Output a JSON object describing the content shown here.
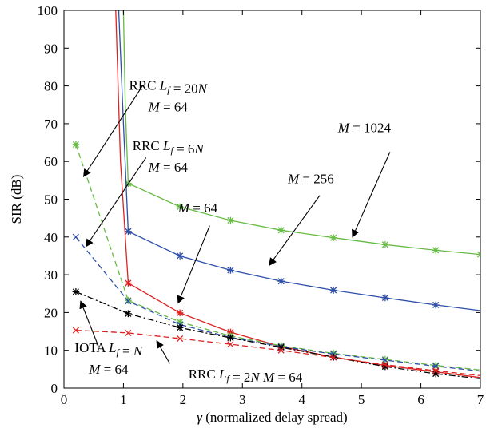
{
  "chart_data": {
    "type": "line",
    "xlabel": "γ (normalized delay spread)",
    "ylabel": "SIR (dB)",
    "xlim": [
      0,
      7
    ],
    "ylim": [
      0,
      100
    ],
    "xticks": [
      0,
      1,
      2,
      3,
      4,
      5,
      6,
      7
    ],
    "yticks": [
      0,
      10,
      20,
      30,
      40,
      50,
      60,
      70,
      80,
      90,
      100
    ],
    "grid": false,
    "series": [
      {
        "color": "#66bb44",
        "dash": "solid",
        "marker": "asterisk",
        "x": [
          1.08,
          1.95,
          2.8,
          3.65,
          4.53,
          5.4,
          6.25,
          7.0
        ],
        "y": [
          54.2,
          48.0,
          44.4,
          41.8,
          39.8,
          38.0,
          36.5,
          35.4
        ],
        "curve": [
          [
            1.0,
            100
          ],
          [
            1.03,
            75
          ],
          [
            1.08,
            54.2
          ],
          [
            1.95,
            48.0
          ],
          [
            2.8,
            44.4
          ],
          [
            3.65,
            41.8
          ],
          [
            4.53,
            39.8
          ],
          [
            5.4,
            38.0
          ],
          [
            6.25,
            36.5
          ],
          [
            7.0,
            35.4
          ]
        ]
      },
      {
        "color": "#2e4fa8",
        "dash": "solid",
        "marker": "asterisk",
        "x": [
          1.08,
          1.95,
          2.8,
          3.65,
          4.53,
          5.4,
          6.25
        ],
        "y": [
          41.5,
          35.0,
          31.2,
          28.3,
          25.9,
          23.9,
          22.0
        ],
        "curve": [
          [
            0.92,
            100
          ],
          [
            1.0,
            70
          ],
          [
            1.08,
            41.5
          ],
          [
            1.95,
            35.0
          ],
          [
            2.8,
            31.2
          ],
          [
            3.65,
            28.3
          ],
          [
            4.53,
            25.9
          ],
          [
            5.4,
            23.9
          ],
          [
            6.25,
            22.0
          ],
          [
            7.0,
            20.5
          ]
        ]
      },
      {
        "color": "#dd2222",
        "dash": "solid",
        "marker": "asterisk",
        "x": [
          1.08,
          1.95,
          2.8,
          3.65,
          4.53,
          5.4,
          6.25
        ],
        "y": [
          27.8,
          19.9,
          14.8,
          11.0,
          8.2,
          6.0,
          4.3
        ],
        "curve": [
          [
            0.87,
            100
          ],
          [
            0.95,
            60
          ],
          [
            1.08,
            27.8
          ],
          [
            1.95,
            19.9
          ],
          [
            2.8,
            14.8
          ],
          [
            3.65,
            11.0
          ],
          [
            4.53,
            8.2
          ],
          [
            5.4,
            6.0
          ],
          [
            6.25,
            4.3
          ],
          [
            7.0,
            2.8
          ]
        ]
      },
      {
        "color": "#66bb44",
        "dash": "dashed",
        "marker": "asterisk",
        "x": [
          0.2,
          1.08,
          1.95,
          2.8,
          3.65,
          4.53,
          5.4,
          6.25
        ],
        "y": [
          64.5,
          23.2,
          17.5,
          13.8,
          11.2,
          9.2,
          7.6,
          6.0
        ],
        "curve": [
          [
            0.2,
            64.5
          ],
          [
            1.08,
            23.2
          ],
          [
            1.95,
            17.5
          ],
          [
            2.8,
            13.8
          ],
          [
            3.65,
            11.2
          ],
          [
            4.53,
            9.2
          ],
          [
            5.4,
            7.6
          ],
          [
            6.25,
            6.0
          ],
          [
            7.0,
            4.8
          ]
        ]
      },
      {
        "color": "#2e4fa8",
        "dash": "dashed",
        "marker": "x",
        "x": [
          0.2,
          1.08,
          1.95,
          2.8,
          3.65,
          4.53,
          5.4,
          6.25
        ],
        "y": [
          40.0,
          23.0,
          16.8,
          13.4,
          11.0,
          9.0,
          7.4,
          5.8
        ],
        "curve": [
          [
            0.2,
            40.0
          ],
          [
            1.08,
            23.0
          ],
          [
            1.95,
            16.8
          ],
          [
            2.8,
            13.4
          ],
          [
            3.65,
            11.0
          ],
          [
            4.53,
            9.0
          ],
          [
            5.4,
            7.4
          ],
          [
            6.25,
            5.8
          ],
          [
            7.0,
            4.5
          ]
        ]
      },
      {
        "color": "#000000",
        "dash": "dashdot",
        "marker": "asterisk",
        "x": [
          0.2,
          1.08,
          1.95,
          2.8,
          3.65,
          4.53,
          5.4,
          6.25
        ],
        "y": [
          25.5,
          19.7,
          16.0,
          13.3,
          10.8,
          8.2,
          5.7,
          3.8
        ],
        "curve": [
          [
            0.2,
            25.5
          ],
          [
            1.08,
            19.7
          ],
          [
            1.95,
            16.0
          ],
          [
            2.8,
            13.3
          ],
          [
            3.65,
            10.8
          ],
          [
            4.53,
            8.2
          ],
          [
            5.4,
            5.7
          ],
          [
            6.25,
            3.8
          ],
          [
            7.0,
            2.5
          ]
        ]
      },
      {
        "color": "#dd2222",
        "dash": "dashed",
        "marker": "x",
        "x": [
          0.2,
          1.08,
          1.95,
          2.8,
          3.65,
          4.53,
          5.4,
          6.25
        ],
        "y": [
          15.3,
          14.6,
          13.1,
          11.6,
          10.0,
          8.1,
          6.2,
          4.6
        ],
        "curve": [
          [
            0.2,
            15.3
          ],
          [
            1.08,
            14.6
          ],
          [
            1.95,
            13.1
          ],
          [
            2.8,
            11.6
          ],
          [
            3.65,
            10.0
          ],
          [
            4.53,
            8.1
          ],
          [
            5.4,
            6.2
          ],
          [
            6.25,
            4.6
          ],
          [
            7.0,
            3.3
          ]
        ]
      }
    ],
    "annotations": [
      {
        "lines": [
          "RRC L_f = 20N",
          "M = 64"
        ],
        "text_at": [
          1.75,
          79
        ],
        "arrow_from": [
          1.32,
          80
        ],
        "arrow_to": [
          0.33,
          56
        ]
      },
      {
        "lines": [
          "RRC L_f = 6N",
          "M = 64"
        ],
        "text_at": [
          1.75,
          63
        ],
        "arrow_from": [
          1.38,
          61
        ],
        "arrow_to": [
          0.37,
          37.5
        ]
      },
      {
        "lines": [
          "M = 64"
        ],
        "text_at": [
          2.25,
          46.5
        ],
        "arrow_from": [
          2.45,
          43
        ],
        "arrow_to": [
          1.92,
          22.5
        ]
      },
      {
        "lines": [
          "M = 256"
        ],
        "text_at": [
          4.15,
          54.2
        ],
        "arrow_from": [
          4.3,
          51
        ],
        "arrow_to": [
          3.45,
          32.5
        ]
      },
      {
        "lines": [
          "M = 1024"
        ],
        "text_at": [
          5.05,
          67.8
        ],
        "arrow_from": [
          5.48,
          62.5
        ],
        "arrow_to": [
          4.85,
          40
        ]
      },
      {
        "lines": [
          "IOTA L_f = N",
          "M = 64"
        ],
        "text_at": [
          0.75,
          9.5
        ],
        "arrow_from": [
          0.58,
          11
        ],
        "arrow_to": [
          0.28,
          23
        ]
      },
      {
        "lines": [
          "RRC L_f = 2N M = 64"
        ],
        "text_at": [
          3.05,
          2.5
        ],
        "arrow_from": [
          1.78,
          6.5
        ],
        "arrow_to": [
          1.56,
          12.5
        ]
      }
    ]
  }
}
